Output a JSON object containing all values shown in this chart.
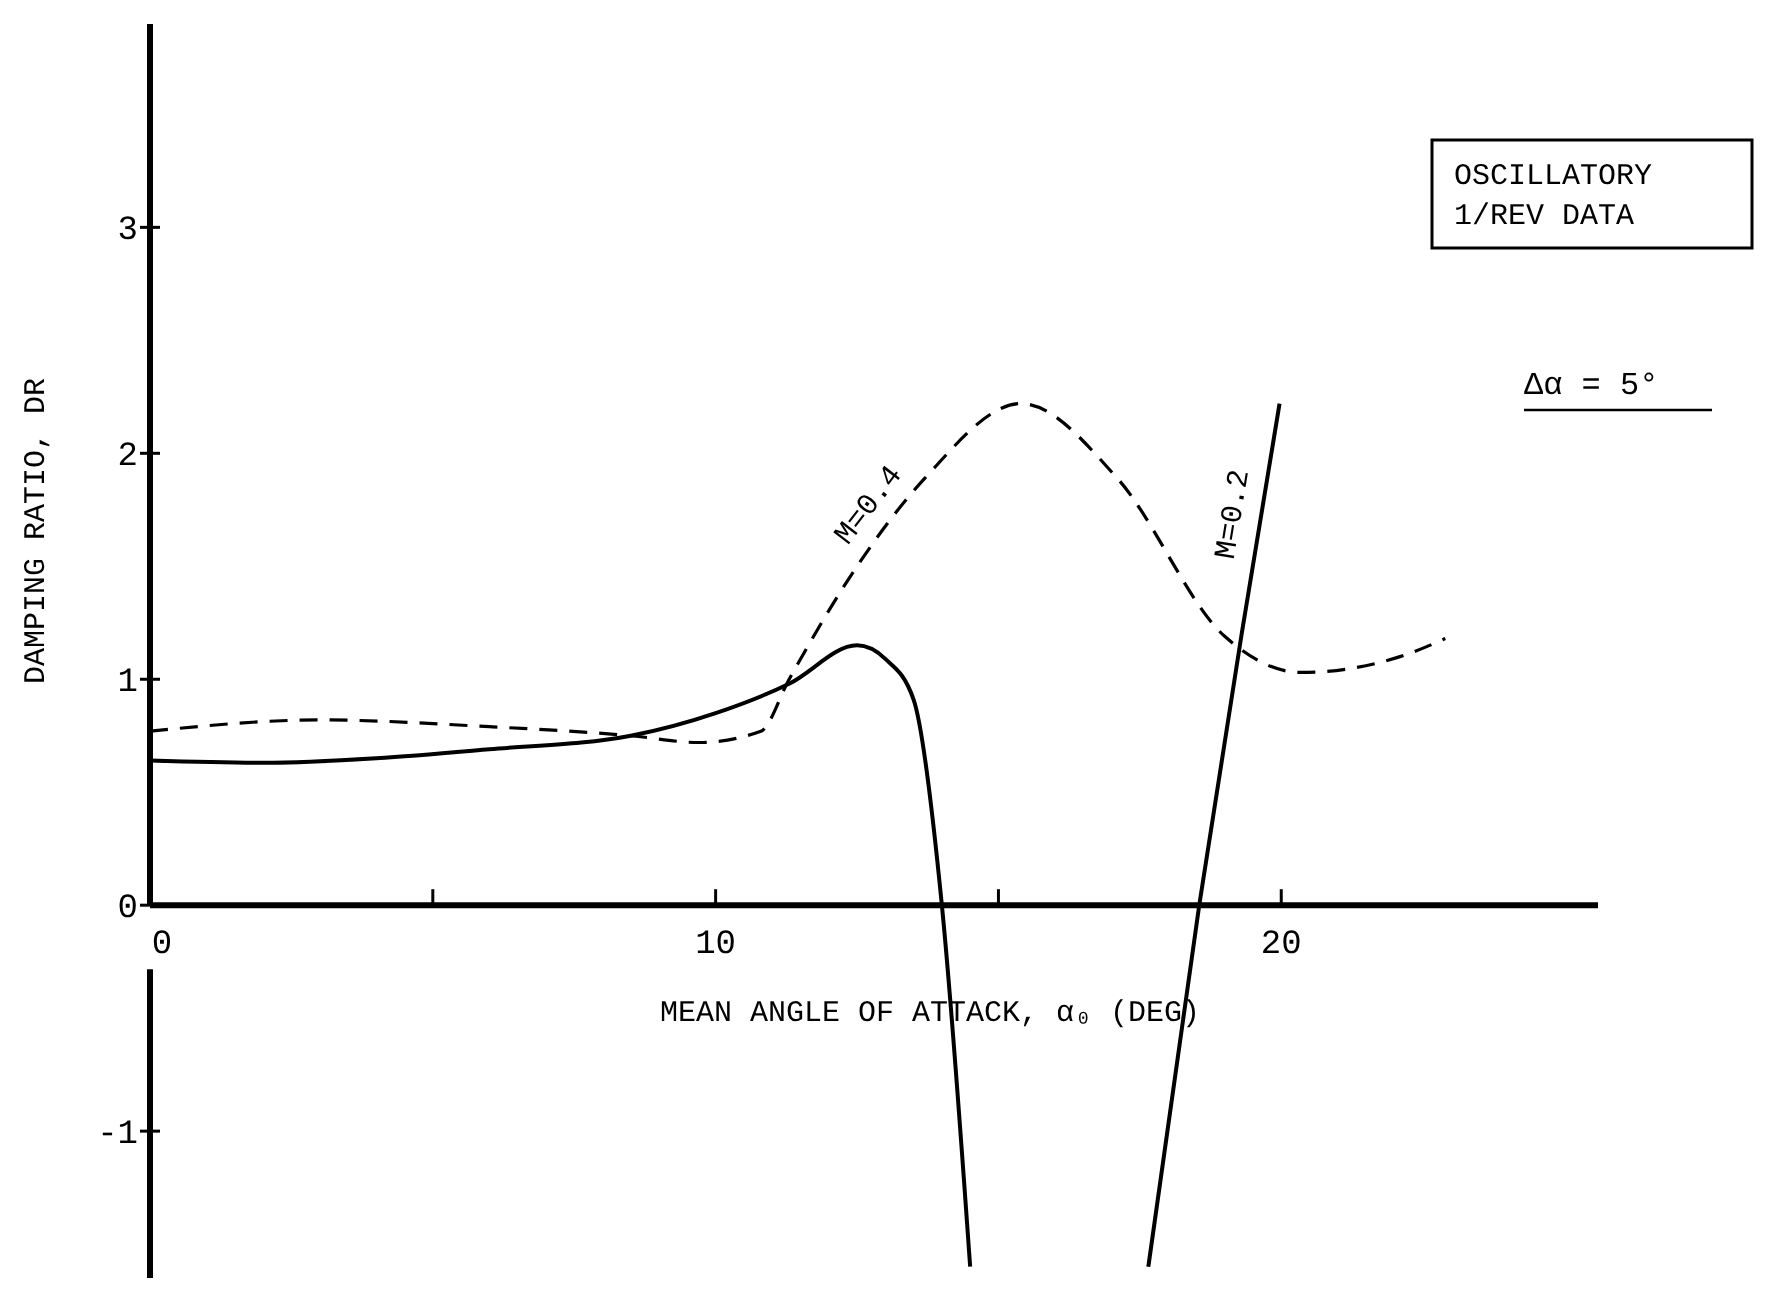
{
  "chart_data": {
    "type": "line",
    "xlabel": "MEAN ANGLE OF ATTACK, α₀ (DEG)",
    "ylabel": "DAMPING RATIO, DR",
    "xlim": [
      0,
      25.6
    ],
    "ylim": [
      -1.65,
      3.9
    ],
    "xticks": [
      0,
      {
        "value": 5,
        "label": null
      },
      10,
      {
        "value": 15,
        "label": null
      },
      20
    ],
    "yticks": [
      -1,
      0,
      1,
      2,
      3
    ],
    "grid": false,
    "annotations": [
      "OSCILLATORY\n1/REV DATA",
      "Δα = 5°"
    ],
    "series": [
      {
        "name": "M=0.4",
        "color": "#000000",
        "line_style": "dashed",
        "x": [
          0,
          3,
          6,
          8.5,
          9.7,
          10.8,
          11.3,
          12.5,
          13.7,
          15.4,
          17.1,
          19.0,
          20.35,
          22.1,
          22.9
        ],
        "values": [
          0.77,
          0.82,
          0.79,
          0.75,
          0.72,
          0.77,
          1.0,
          1.5,
          1.89,
          2.22,
          1.89,
          1.19,
          1.03,
          1.1,
          1.18
        ]
      },
      {
        "name": "M=0.2",
        "color": "#000000",
        "line_style": "solid",
        "x": [
          0,
          2,
          4,
          6,
          8.5,
          10,
          11.3,
          12.5,
          13,
          13.5,
          14,
          14.5,
          16,
          17.65,
          18.55,
          19.3,
          19.97
        ],
        "values": [
          0.64,
          0.63,
          0.65,
          0.69,
          0.75,
          0.85,
          0.98,
          1.15,
          1.09,
          0.91,
          0,
          -1.6,
          null,
          -1.6,
          0,
          1.2,
          2.22
        ]
      }
    ]
  }
}
